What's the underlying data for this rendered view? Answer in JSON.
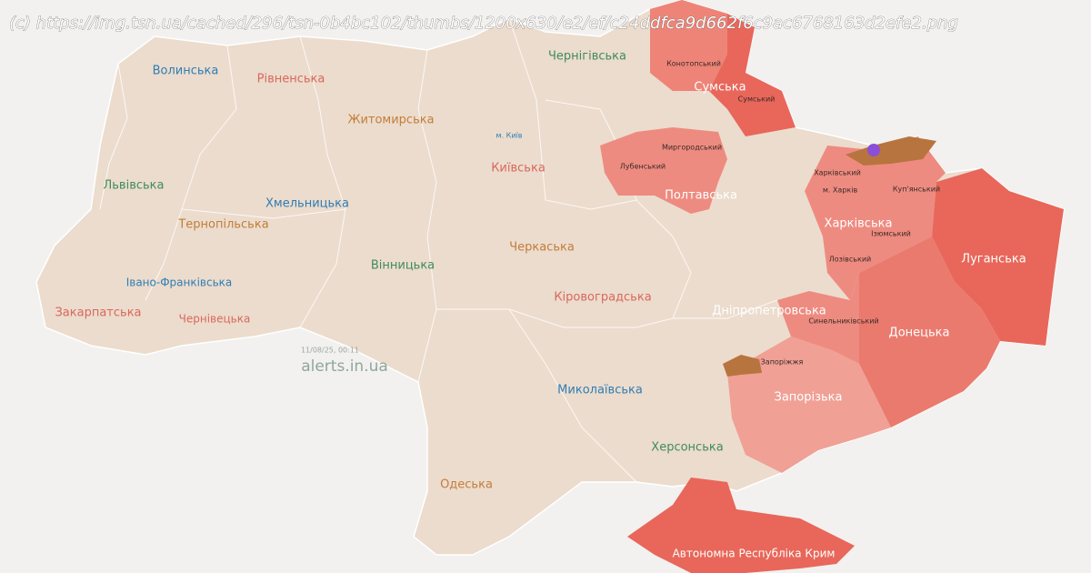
{
  "watermark": "(c) https://img.tsn.ua/cached/296/tsn-0b4bc102/thumbs/1200x630/e2/ef/c24ddfca9d662f6c9ac6768163d2efe2.png",
  "regions": [
    "Волинська",
    "Рівненська",
    "Житомирська",
    "Чернігівська",
    "Сумська",
    "Київська",
    "Львівська",
    "Хмельницька",
    "Тернопільська",
    "Полтавська",
    "Харківська",
    "Луганська",
    "Черкаська",
    "Вінницька",
    "Івано-Франківська",
    "Закарпатська",
    "Чернівецька",
    "Кіровоградська",
    "Дніпропетровська",
    "Донецька",
    "Запорізька",
    "Миколаївська",
    "Херсонська",
    "Одеська",
    "Автономна Республіка Крим"
  ],
  "districts": [
    "Конотопський",
    "Сумський",
    "Миргородський",
    "Лубенський",
    "Харківський",
    "Куп'янський",
    "Ізюмський",
    "Лозівський",
    "Синельниківський",
    "Запоріжжя"
  ],
  "cities": [
    "м. Київ",
    "м. Харків"
  ],
  "timestamp": "11/08/25, 00:11",
  "source": "alerts.in.ua"
}
